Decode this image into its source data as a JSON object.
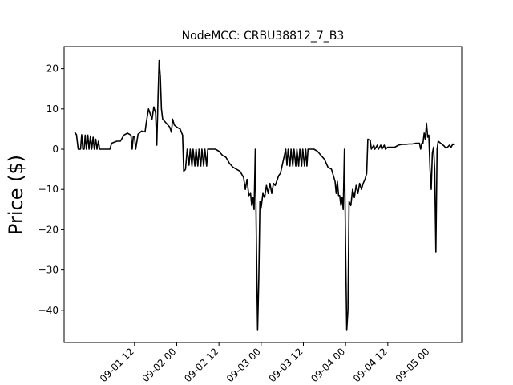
{
  "chart_data": {
    "type": "line",
    "title": "NodeMCC: CRBU38812_7_B3",
    "xlabel": "",
    "ylabel": "Price ($)",
    "xlim": [
      "2018-08-31T16:00",
      "2018-09-05T09:00"
    ],
    "ylim": [
      -48,
      25.5
    ],
    "grid": false,
    "yticks": [
      {
        "value": 20,
        "label": "20"
      },
      {
        "value": 10,
        "label": "10"
      },
      {
        "value": 0,
        "label": "0"
      },
      {
        "value": -10,
        "label": "−10"
      },
      {
        "value": -20,
        "label": "−20"
      },
      {
        "value": -30,
        "label": "−30"
      },
      {
        "value": -40,
        "label": "−40"
      }
    ],
    "xticks": [
      {
        "value": "2018-09-01T12:00",
        "label": "09-01 12"
      },
      {
        "value": "2018-09-02T00:00",
        "label": "09-02 00"
      },
      {
        "value": "2018-09-02T12:00",
        "label": "09-02 12"
      },
      {
        "value": "2018-09-03T00:00",
        "label": "09-03 00"
      },
      {
        "value": "2018-09-03T12:00",
        "label": "09-03 12"
      },
      {
        "value": "2018-09-04T00:00",
        "label": "09-04 00"
      },
      {
        "value": "2018-09-04T12:00",
        "label": "09-04 12"
      },
      {
        "value": "2018-09-05T00:00",
        "label": "09-05 00"
      }
    ],
    "series": [
      {
        "color": "#000000",
        "points": [
          [
            "2018-08-31T19:00",
            4.2
          ],
          [
            "2018-08-31T19:30",
            3.6
          ],
          [
            "2018-08-31T20:00",
            0.0
          ],
          [
            "2018-08-31T20:40",
            0.0
          ],
          [
            "2018-08-31T21:00",
            3.6
          ],
          [
            "2018-08-31T21:20",
            0.0
          ],
          [
            "2018-08-31T21:40",
            0.0
          ],
          [
            "2018-08-31T22:00",
            3.5
          ],
          [
            "2018-08-31T22:20",
            0.0
          ],
          [
            "2018-08-31T22:45",
            3.5
          ],
          [
            "2018-08-31T23:05",
            0.0
          ],
          [
            "2018-08-31T23:30",
            3.3
          ],
          [
            "2018-08-31T23:50",
            0.0
          ],
          [
            "2018-09-01T00:15",
            3.0
          ],
          [
            "2018-09-01T00:35",
            0.0
          ],
          [
            "2018-09-01T01:00",
            2.5
          ],
          [
            "2018-09-01T01:20",
            0.0
          ],
          [
            "2018-09-01T01:45",
            2.0
          ],
          [
            "2018-09-01T02:05",
            0.0
          ],
          [
            "2018-09-01T03:00",
            0.0
          ],
          [
            "2018-09-01T04:00",
            0.0
          ],
          [
            "2018-09-01T05:00",
            0.0
          ],
          [
            "2018-09-01T05:30",
            1.5
          ],
          [
            "2018-09-01T07:00",
            2.0
          ],
          [
            "2018-09-01T08:00",
            2.0
          ],
          [
            "2018-09-01T09:00",
            3.5
          ],
          [
            "2018-09-01T10:00",
            4.0
          ],
          [
            "2018-09-01T11:00",
            3.5
          ],
          [
            "2018-09-01T11:20",
            0.0
          ],
          [
            "2018-09-01T11:40",
            3.2
          ],
          [
            "2018-09-01T12:00",
            3.2
          ],
          [
            "2018-09-01T12:20",
            0.0
          ],
          [
            "2018-09-01T13:00",
            3.7
          ],
          [
            "2018-09-01T14:00",
            4.5
          ],
          [
            "2018-09-01T15:00",
            4.3
          ],
          [
            "2018-09-01T15:20",
            6.5
          ],
          [
            "2018-09-01T16:00",
            10.0
          ],
          [
            "2018-09-01T17:00",
            7.5
          ],
          [
            "2018-09-01T17:30",
            10.5
          ],
          [
            "2018-09-01T18:00",
            9.0
          ],
          [
            "2018-09-01T18:20",
            1.0
          ],
          [
            "2018-09-01T18:40",
            12.5
          ],
          [
            "2018-09-01T19:00",
            22.0
          ],
          [
            "2018-09-01T19:20",
            18.0
          ],
          [
            "2018-09-01T19:40",
            10.0
          ],
          [
            "2018-09-01T20:00",
            7.5
          ],
          [
            "2018-09-01T21:00",
            6.5
          ],
          [
            "2018-09-01T22:00",
            5.5
          ],
          [
            "2018-09-01T22:30",
            4.2
          ],
          [
            "2018-09-01T22:50",
            7.5
          ],
          [
            "2018-09-01T23:20",
            6.0
          ],
          [
            "2018-09-02T00:00",
            5.5
          ],
          [
            "2018-09-02T01:00",
            5.0
          ],
          [
            "2018-09-02T01:40",
            3.5
          ],
          [
            "2018-09-02T02:00",
            -5.5
          ],
          [
            "2018-09-02T02:30",
            -5.0
          ],
          [
            "2018-09-02T03:00",
            0.0
          ],
          [
            "2018-09-02T03:30",
            -4.0
          ],
          [
            "2018-09-02T03:50",
            0.0
          ],
          [
            "2018-09-02T04:20",
            -4.2
          ],
          [
            "2018-09-02T04:40",
            0.0
          ],
          [
            "2018-09-02T05:10",
            -4.2
          ],
          [
            "2018-09-02T05:30",
            0.0
          ],
          [
            "2018-09-02T06:00",
            -4.2
          ],
          [
            "2018-09-02T06:20",
            0.0
          ],
          [
            "2018-09-02T06:50",
            -4.2
          ],
          [
            "2018-09-02T07:10",
            0.0
          ],
          [
            "2018-09-02T07:40",
            -4.2
          ],
          [
            "2018-09-02T08:00",
            0.0
          ],
          [
            "2018-09-02T08:30",
            -4.2
          ],
          [
            "2018-09-02T08:50",
            0.0
          ],
          [
            "2018-09-02T09:30",
            0.0
          ],
          [
            "2018-09-02T10:00",
            0.0
          ],
          [
            "2018-09-02T11:00",
            0.0
          ],
          [
            "2018-09-02T12:00",
            -0.5
          ],
          [
            "2018-09-02T13:00",
            -1.5
          ],
          [
            "2018-09-02T14:00",
            -2.0
          ],
          [
            "2018-09-02T15:00",
            -3.5
          ],
          [
            "2018-09-02T16:00",
            -4.5
          ],
          [
            "2018-09-02T17:00",
            -5.0
          ],
          [
            "2018-09-02T18:00",
            -5.5
          ],
          [
            "2018-09-02T19:00",
            -7.0
          ],
          [
            "2018-09-02T19:30",
            -10.0
          ],
          [
            "2018-09-02T20:00",
            -7.5
          ],
          [
            "2018-09-02T20:30",
            -11.5
          ],
          [
            "2018-09-02T21:00",
            -11.0
          ],
          [
            "2018-09-02T21:20",
            -14.0
          ],
          [
            "2018-09-02T21:40",
            -12.0
          ],
          [
            "2018-09-02T22:00",
            -15.0
          ],
          [
            "2018-09-02T22:20",
            0.0
          ],
          [
            "2018-09-02T22:40",
            -25.0
          ],
          [
            "2018-09-02T23:00",
            -45.0
          ],
          [
            "2018-09-02T23:20",
            -32.0
          ],
          [
            "2018-09-02T23:40",
            -13.0
          ],
          [
            "2018-09-03T00:00",
            -14.5
          ],
          [
            "2018-09-03T00:30",
            -11.0
          ],
          [
            "2018-09-03T01:00",
            -12.0
          ],
          [
            "2018-09-03T01:30",
            -9.0
          ],
          [
            "2018-09-03T02:00",
            -11.0
          ],
          [
            "2018-09-03T02:30",
            -8.5
          ],
          [
            "2018-09-03T03:00",
            -11.0
          ],
          [
            "2018-09-03T03:30",
            -8.5
          ],
          [
            "2018-09-03T04:00",
            -9.0
          ],
          [
            "2018-09-03T05:00",
            -6.5
          ],
          [
            "2018-09-03T05:30",
            -6.0
          ],
          [
            "2018-09-03T06:00",
            -4.0
          ],
          [
            "2018-09-03T06:30",
            -2.0
          ],
          [
            "2018-09-03T07:00",
            0.0
          ],
          [
            "2018-09-03T07:20",
            -4.0
          ],
          [
            "2018-09-03T07:40",
            0.0
          ],
          [
            "2018-09-03T08:10",
            -4.2
          ],
          [
            "2018-09-03T08:30",
            0.0
          ],
          [
            "2018-09-03T09:00",
            -4.2
          ],
          [
            "2018-09-03T09:20",
            0.0
          ],
          [
            "2018-09-03T09:50",
            -4.2
          ],
          [
            "2018-09-03T10:10",
            0.0
          ],
          [
            "2018-09-03T10:40",
            -4.2
          ],
          [
            "2018-09-03T11:00",
            0.0
          ],
          [
            "2018-09-03T11:30",
            -4.2
          ],
          [
            "2018-09-03T11:50",
            0.0
          ],
          [
            "2018-09-03T12:20",
            -4.2
          ],
          [
            "2018-09-03T12:40",
            0.0
          ],
          [
            "2018-09-03T13:00",
            -4.2
          ],
          [
            "2018-09-03T13:20",
            0.0
          ],
          [
            "2018-09-03T14:00",
            0.0
          ],
          [
            "2018-09-03T15:00",
            0.0
          ],
          [
            "2018-09-03T16:00",
            -0.5
          ],
          [
            "2018-09-03T17:00",
            -1.5
          ],
          [
            "2018-09-03T18:00",
            -2.5
          ],
          [
            "2018-09-03T19:00",
            -4.5
          ],
          [
            "2018-09-03T20:00",
            -5.0
          ],
          [
            "2018-09-03T20:30",
            -6.5
          ],
          [
            "2018-09-03T21:00",
            -8.0
          ],
          [
            "2018-09-03T21:20",
            -11.0
          ],
          [
            "2018-09-03T21:40",
            -8.0
          ],
          [
            "2018-09-03T22:00",
            -11.5
          ],
          [
            "2018-09-03T22:20",
            -11.5
          ],
          [
            "2018-09-03T22:40",
            -14.0
          ],
          [
            "2018-09-03T23:00",
            -12.0
          ],
          [
            "2018-09-03T23:20",
            -15.0
          ],
          [
            "2018-09-03T23:40",
            0.0
          ],
          [
            "2018-09-04T00:00",
            -25.0
          ],
          [
            "2018-09-04T00:20",
            -45.0
          ],
          [
            "2018-09-04T00:40",
            -40.0
          ],
          [
            "2018-09-04T01:00",
            -13.0
          ],
          [
            "2018-09-04T01:30",
            -14.0
          ],
          [
            "2018-09-04T02:00",
            -10.0
          ],
          [
            "2018-09-04T02:30",
            -12.0
          ],
          [
            "2018-09-04T03:00",
            -9.0
          ],
          [
            "2018-09-04T03:30",
            -11.0
          ],
          [
            "2018-09-04T04:00",
            -8.5
          ],
          [
            "2018-09-04T04:30",
            -10.0
          ],
          [
            "2018-09-04T05:00",
            -8.5
          ],
          [
            "2018-09-04T05:30",
            -7.5
          ],
          [
            "2018-09-04T06:00",
            -6.0
          ],
          [
            "2018-09-04T06:20",
            2.5
          ],
          [
            "2018-09-04T07:00",
            2.2
          ],
          [
            "2018-09-04T07:20",
            0.0
          ],
          [
            "2018-09-04T08:00",
            1.0
          ],
          [
            "2018-09-04T08:20",
            0.0
          ],
          [
            "2018-09-04T09:00",
            1.0
          ],
          [
            "2018-09-04T09:20",
            0.0
          ],
          [
            "2018-09-04T10:00",
            1.0
          ],
          [
            "2018-09-04T10:20",
            0.0
          ],
          [
            "2018-09-04T11:00",
            1.0
          ],
          [
            "2018-09-04T11:20",
            0.0
          ],
          [
            "2018-09-04T12:00",
            0.5
          ],
          [
            "2018-09-04T13:00",
            0.5
          ],
          [
            "2018-09-04T14:00",
            0.5
          ],
          [
            "2018-09-04T15:00",
            1.0
          ],
          [
            "2018-09-04T16:00",
            1.2
          ],
          [
            "2018-09-04T17:00",
            1.2
          ],
          [
            "2018-09-04T18:00",
            1.3
          ],
          [
            "2018-09-04T19:00",
            1.3
          ],
          [
            "2018-09-04T20:00",
            1.5
          ],
          [
            "2018-09-04T21:00",
            1.5
          ],
          [
            "2018-09-04T21:20",
            0.0
          ],
          [
            "2018-09-04T21:40",
            1.5
          ],
          [
            "2018-09-04T22:00",
            1.5
          ],
          [
            "2018-09-04T22:20",
            4.0
          ],
          [
            "2018-09-04T22:40",
            2.5
          ],
          [
            "2018-09-04T23:00",
            6.5
          ],
          [
            "2018-09-04T23:20",
            3.0
          ],
          [
            "2018-09-04T23:40",
            3.5
          ],
          [
            "2018-09-05T00:00",
            -5.0
          ],
          [
            "2018-09-05T00:20",
            -10.0
          ],
          [
            "2018-09-05T00:40",
            -1.0
          ],
          [
            "2018-09-05T01:00",
            0.5
          ],
          [
            "2018-09-05T01:20",
            -5.0
          ],
          [
            "2018-09-05T01:40",
            -25.5
          ],
          [
            "2018-09-05T02:00",
            0.0
          ],
          [
            "2018-09-05T02:20",
            2.0
          ],
          [
            "2018-09-05T03:00",
            1.5
          ],
          [
            "2018-09-05T04:00",
            0.8
          ],
          [
            "2018-09-05T04:30",
            0.3
          ],
          [
            "2018-09-05T05:00",
            0.5
          ],
          [
            "2018-09-05T05:30",
            1.0
          ],
          [
            "2018-09-05T06:00",
            0.5
          ],
          [
            "2018-09-05T06:30",
            1.3
          ],
          [
            "2018-09-05T07:00",
            1.0
          ]
        ]
      }
    ]
  }
}
